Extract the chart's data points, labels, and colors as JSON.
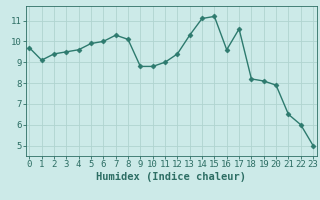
{
  "x": [
    0,
    1,
    2,
    3,
    4,
    5,
    6,
    7,
    8,
    9,
    10,
    11,
    12,
    13,
    14,
    15,
    16,
    17,
    18,
    19,
    20,
    21,
    22,
    23
  ],
  "y": [
    9.7,
    9.1,
    9.4,
    9.5,
    9.6,
    9.9,
    10.0,
    10.3,
    10.1,
    8.8,
    8.8,
    9.0,
    9.4,
    10.3,
    11.1,
    11.2,
    9.6,
    10.6,
    8.2,
    8.1,
    7.9,
    6.5,
    6.0,
    5.0
  ],
  "line_color": "#2d7a6e",
  "marker": "D",
  "marker_size": 2.5,
  "bg_color": "#cceae8",
  "grid_color": "#b0d4d0",
  "xlabel": "Humidex (Indice chaleur)",
  "xlabel_fontsize": 7.5,
  "xlabel_color": "#2d6e64",
  "yticks": [
    5,
    6,
    7,
    8,
    9,
    10,
    11
  ],
  "xticks": [
    0,
    1,
    2,
    3,
    4,
    5,
    6,
    7,
    8,
    9,
    10,
    11,
    12,
    13,
    14,
    15,
    16,
    17,
    18,
    19,
    20,
    21,
    22,
    23
  ],
  "ylim": [
    4.5,
    11.7
  ],
  "xlim": [
    -0.3,
    23.3
  ],
  "tick_color": "#2d6e64",
  "tick_fontsize": 6.5
}
